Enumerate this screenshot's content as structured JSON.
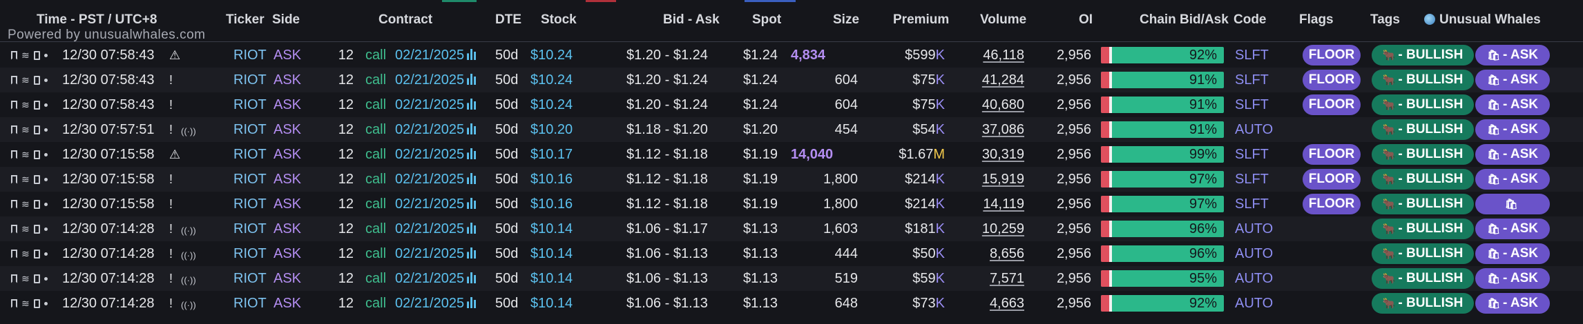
{
  "header": {
    "time": "Time - PST / UTC+8",
    "ticker": "Ticker",
    "side": "Side",
    "contract": "Contract",
    "dte": "DTE",
    "stock": "Stock",
    "bidask": "Bid - Ask",
    "spot": "Spot",
    "size": "Size",
    "premium": "Premium",
    "volume": "Volume",
    "oi": "OI",
    "chain": "Chain Bid/Ask",
    "code": "Code",
    "flags": "Flags",
    "tags": "Tags",
    "brand": "Unusual Whales",
    "powered": "Powered by unusualwhales.com"
  },
  "colors": {
    "background": "#15161b",
    "row_alt": "#1c1d23",
    "ticker": "#7ec3f0",
    "side": "#b48ef2",
    "call": "#3fbf8f",
    "chain_green": "#2bb88a",
    "chain_red": "#e0505e",
    "floor_pill": "#6a53c9",
    "bullish_pill": "#167a5d"
  },
  "rows": [
    {
      "time": "12/30 07:58:43",
      "alert": "⚠",
      "radio": "",
      "ticker": "RIOT",
      "side": "ASK",
      "strike": "12",
      "type": "call",
      "exp": "02/21/2025",
      "dte": "50d",
      "stock": "$10.24",
      "bidask": "$1.20 - $1.24",
      "spot": "$1.24",
      "size": "4,834",
      "size_highlight": true,
      "prem_num": "$599",
      "prem_unit": "K",
      "volume": "46,118",
      "oi": "2,956",
      "chain_pct": "92%",
      "code": "SLFT",
      "flag": "FLOOR",
      "tag_bull": "- BULLISH",
      "tag_ask": "- ASK"
    },
    {
      "time": "12/30 07:58:43",
      "alert": "!",
      "radio": "",
      "ticker": "RIOT",
      "side": "ASK",
      "strike": "12",
      "type": "call",
      "exp": "02/21/2025",
      "dte": "50d",
      "stock": "$10.24",
      "bidask": "$1.20 - $1.24",
      "spot": "$1.24",
      "size": "604",
      "size_highlight": false,
      "prem_num": "$75",
      "prem_unit": "K",
      "volume": "41,284",
      "oi": "2,956",
      "chain_pct": "91%",
      "code": "SLFT",
      "flag": "FLOOR",
      "tag_bull": "- BULLISH",
      "tag_ask": "- ASK"
    },
    {
      "time": "12/30 07:58:43",
      "alert": "!",
      "radio": "",
      "ticker": "RIOT",
      "side": "ASK",
      "strike": "12",
      "type": "call",
      "exp": "02/21/2025",
      "dte": "50d",
      "stock": "$10.24",
      "bidask": "$1.20 - $1.24",
      "spot": "$1.24",
      "size": "604",
      "size_highlight": false,
      "prem_num": "$75",
      "prem_unit": "K",
      "volume": "40,680",
      "oi": "2,956",
      "chain_pct": "91%",
      "code": "SLFT",
      "flag": "FLOOR",
      "tag_bull": "- BULLISH",
      "tag_ask": "- ASK"
    },
    {
      "time": "12/30 07:57:51",
      "alert": "!",
      "radio": "((·))",
      "ticker": "RIOT",
      "side": "ASK",
      "strike": "12",
      "type": "call",
      "exp": "02/21/2025",
      "dte": "50d",
      "stock": "$10.20",
      "bidask": "$1.18 - $1.20",
      "spot": "$1.20",
      "size": "454",
      "size_highlight": false,
      "prem_num": "$54",
      "prem_unit": "K",
      "volume": "37,086",
      "oi": "2,956",
      "chain_pct": "91%",
      "code": "AUTO",
      "flag": "",
      "tag_bull": "- BULLISH",
      "tag_ask": "- ASK"
    },
    {
      "time": "12/30 07:15:58",
      "alert": "⚠",
      "radio": "",
      "ticker": "RIOT",
      "side": "ASK",
      "strike": "12",
      "type": "call",
      "exp": "02/21/2025",
      "dte": "50d",
      "stock": "$10.17",
      "bidask": "$1.12 - $1.18",
      "spot": "$1.19",
      "size": "14,040",
      "size_highlight": true,
      "prem_num": "$1.67",
      "prem_unit": "M",
      "volume": "30,319",
      "oi": "2,956",
      "chain_pct": "99%",
      "code": "SLFT",
      "flag": "FLOOR",
      "tag_bull": "- BULLISH",
      "tag_ask": "- ASK"
    },
    {
      "time": "12/30 07:15:58",
      "alert": "!",
      "radio": "",
      "ticker": "RIOT",
      "side": "ASK",
      "strike": "12",
      "type": "call",
      "exp": "02/21/2025",
      "dte": "50d",
      "stock": "$10.16",
      "bidask": "$1.12 - $1.18",
      "spot": "$1.19",
      "size": "1,800",
      "size_highlight": false,
      "prem_num": "$214",
      "prem_unit": "K",
      "volume": "15,919",
      "oi": "2,956",
      "chain_pct": "97%",
      "code": "SLFT",
      "flag": "FLOOR",
      "tag_bull": "- BULLISH",
      "tag_ask": "- ASK"
    },
    {
      "time": "12/30 07:15:58",
      "alert": "!",
      "radio": "",
      "ticker": "RIOT",
      "side": "ASK",
      "strike": "12",
      "type": "call",
      "exp": "02/21/2025",
      "dte": "50d",
      "stock": "$10.16",
      "bidask": "$1.12 - $1.18",
      "spot": "$1.19",
      "size": "1,800",
      "size_highlight": false,
      "prem_num": "$214",
      "prem_unit": "K",
      "volume": "14,119",
      "oi": "2,956",
      "chain_pct": "97%",
      "code": "SLFT",
      "flag": "FLOOR",
      "tag_bull": "- BULLISH",
      "tag_ask": ""
    },
    {
      "time": "12/30 07:14:28",
      "alert": "!",
      "radio": "((·))",
      "ticker": "RIOT",
      "side": "ASK",
      "strike": "12",
      "type": "call",
      "exp": "02/21/2025",
      "dte": "50d",
      "stock": "$10.14",
      "bidask": "$1.06 - $1.17",
      "spot": "$1.13",
      "size": "1,603",
      "size_highlight": false,
      "prem_num": "$181",
      "prem_unit": "K",
      "volume": "10,259",
      "oi": "2,956",
      "chain_pct": "96%",
      "code": "AUTO",
      "flag": "",
      "tag_bull": "- BULLISH",
      "tag_ask": "- ASK"
    },
    {
      "time": "12/30 07:14:28",
      "alert": "!",
      "radio": "((·))",
      "ticker": "RIOT",
      "side": "ASK",
      "strike": "12",
      "type": "call",
      "exp": "02/21/2025",
      "dte": "50d",
      "stock": "$10.14",
      "bidask": "$1.06 - $1.13",
      "spot": "$1.13",
      "size": "444",
      "size_highlight": false,
      "prem_num": "$50",
      "prem_unit": "K",
      "volume": "8,656",
      "oi": "2,956",
      "chain_pct": "96%",
      "code": "AUTO",
      "flag": "",
      "tag_bull": "- BULLISH",
      "tag_ask": "- ASK"
    },
    {
      "time": "12/30 07:14:28",
      "alert": "!",
      "radio": "((·))",
      "ticker": "RIOT",
      "side": "ASK",
      "strike": "12",
      "type": "call",
      "exp": "02/21/2025",
      "dte": "50d",
      "stock": "$10.14",
      "bidask": "$1.06 - $1.13",
      "spot": "$1.13",
      "size": "519",
      "size_highlight": false,
      "prem_num": "$59",
      "prem_unit": "K",
      "volume": "7,571",
      "oi": "2,956",
      "chain_pct": "95%",
      "code": "AUTO",
      "flag": "",
      "tag_bull": "- BULLISH",
      "tag_ask": "- ASK"
    },
    {
      "time": "12/30 07:14:28",
      "alert": "!",
      "radio": "((·))",
      "ticker": "RIOT",
      "side": "ASK",
      "strike": "12",
      "type": "call",
      "exp": "02/21/2025",
      "dte": "50d",
      "stock": "$10.14",
      "bidask": "$1.06 - $1.13",
      "spot": "$1.13",
      "size": "648",
      "size_highlight": false,
      "prem_num": "$73",
      "prem_unit": "K",
      "volume": "4,663",
      "oi": "2,956",
      "chain_pct": "92%",
      "code": "AUTO",
      "flag": "",
      "tag_bull": "- BULLISH",
      "tag_ask": "- ASK"
    }
  ]
}
